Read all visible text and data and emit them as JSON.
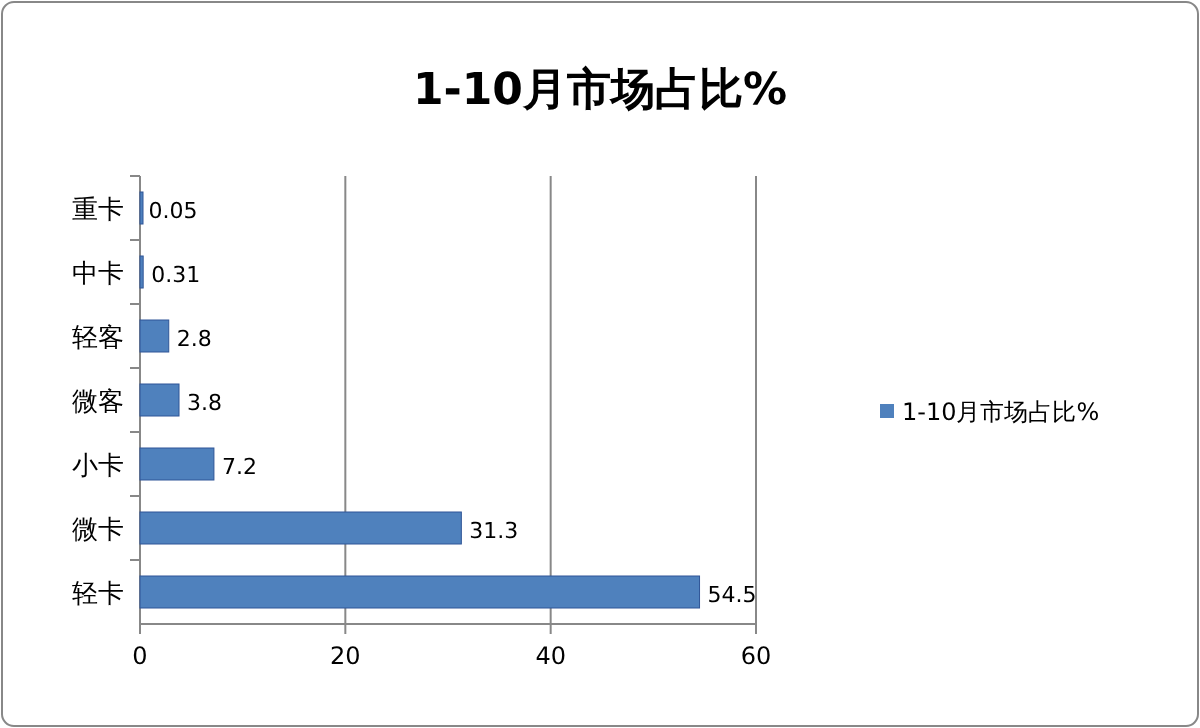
{
  "chart_data": {
    "type": "bar",
    "orientation": "horizontal",
    "title": "1-10月市场占比%",
    "categories": [
      "重卡",
      "中卡",
      "轻客",
      "微客",
      "小卡",
      "微卡",
      "轻卡"
    ],
    "series": [
      {
        "name": "1-10月市场占比%",
        "color": "#4f81bd",
        "values": [
          0.05,
          0.31,
          2.8,
          3.8,
          7.2,
          31.3,
          54.5
        ]
      }
    ],
    "xlim": [
      0,
      60
    ],
    "xticks": [
      0,
      20,
      40,
      60
    ],
    "grid": "x",
    "legend": "right",
    "data_labels": true
  }
}
